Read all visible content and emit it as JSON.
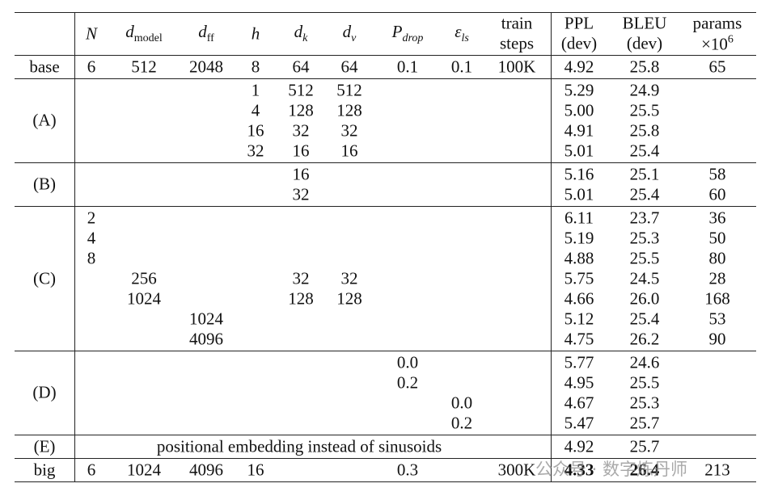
{
  "table": {
    "header": [
      {
        "lines": [
          [
            {
              "text": "N",
              "italic": true
            }
          ]
        ]
      },
      {
        "lines": [
          [
            {
              "text": "d",
              "italic": true
            },
            {
              "text": "model",
              "sub": true
            }
          ]
        ]
      },
      {
        "lines": [
          [
            {
              "text": "d",
              "italic": true
            },
            {
              "text": "ff",
              "sub": true
            }
          ]
        ]
      },
      {
        "lines": [
          [
            {
              "text": "h",
              "italic": true
            }
          ]
        ]
      },
      {
        "lines": [
          [
            {
              "text": "d",
              "italic": true
            },
            {
              "text": "k",
              "sub": true,
              "italic": true
            }
          ]
        ]
      },
      {
        "lines": [
          [
            {
              "text": "d",
              "italic": true
            },
            {
              "text": "v",
              "sub": true,
              "italic": true
            }
          ]
        ]
      },
      {
        "lines": [
          [
            {
              "text": "P",
              "italic": true
            },
            {
              "text": "drop",
              "sub": true,
              "italic": true
            }
          ]
        ]
      },
      {
        "lines": [
          [
            {
              "text": "ε",
              "italic": true
            },
            {
              "text": "ls",
              "sub": true,
              "italic": true
            }
          ]
        ]
      },
      {
        "lines": [
          [
            {
              "text": "train"
            }
          ],
          [
            {
              "text": "steps"
            }
          ]
        ]
      },
      {
        "lines": [
          [
            {
              "text": "PPL"
            }
          ],
          [
            {
              "text": "(dev)"
            }
          ]
        ]
      },
      {
        "lines": [
          [
            {
              "text": "BLEU"
            }
          ],
          [
            {
              "text": "(dev)"
            }
          ]
        ]
      },
      {
        "lines": [
          [
            {
              "text": "params"
            }
          ],
          [
            {
              "text": "×10"
            },
            {
              "text": "6",
              "sup": true
            }
          ]
        ]
      }
    ],
    "rows": [
      {
        "label": "base",
        "lines": [
          [
            "6",
            "512",
            "2048",
            "8",
            "64",
            "64",
            "0.1",
            "0.1",
            "100K",
            "4.92",
            "25.8",
            "65"
          ]
        ]
      },
      {
        "label": "(A)",
        "lines": [
          [
            null,
            null,
            null,
            "1",
            "512",
            "512",
            null,
            null,
            null,
            "5.29",
            "24.9",
            null
          ],
          [
            null,
            null,
            null,
            "4",
            "128",
            "128",
            null,
            null,
            null,
            "5.00",
            "25.5",
            null
          ],
          [
            null,
            null,
            null,
            "16",
            "32",
            "32",
            null,
            null,
            null,
            "4.91",
            "25.8",
            null
          ],
          [
            null,
            null,
            null,
            "32",
            "16",
            "16",
            null,
            null,
            null,
            "5.01",
            "25.4",
            null
          ]
        ]
      },
      {
        "label": "(B)",
        "lines": [
          [
            null,
            null,
            null,
            null,
            "16",
            null,
            null,
            null,
            null,
            "5.16",
            "25.1",
            "58"
          ],
          [
            null,
            null,
            null,
            null,
            "32",
            null,
            null,
            null,
            null,
            "5.01",
            "25.4",
            "60"
          ]
        ]
      },
      {
        "label": "(C)",
        "lines": [
          [
            "2",
            null,
            null,
            null,
            null,
            null,
            null,
            null,
            null,
            "6.11",
            "23.7",
            "36"
          ],
          [
            "4",
            null,
            null,
            null,
            null,
            null,
            null,
            null,
            null,
            "5.19",
            "25.3",
            "50"
          ],
          [
            "8",
            null,
            null,
            null,
            null,
            null,
            null,
            null,
            null,
            "4.88",
            "25.5",
            "80"
          ],
          [
            null,
            "256",
            null,
            null,
            "32",
            "32",
            null,
            null,
            null,
            "5.75",
            "24.5",
            "28"
          ],
          [
            null,
            "1024",
            null,
            null,
            "128",
            "128",
            null,
            null,
            null,
            "4.66",
            "26.0",
            "168"
          ],
          [
            null,
            null,
            "1024",
            null,
            null,
            null,
            null,
            null,
            null,
            "5.12",
            "25.4",
            "53"
          ],
          [
            null,
            null,
            "4096",
            null,
            null,
            null,
            null,
            null,
            null,
            "4.75",
            "26.2",
            "90"
          ]
        ]
      },
      {
        "label": "(D)",
        "lines": [
          [
            null,
            null,
            null,
            null,
            null,
            null,
            "0.0",
            null,
            null,
            "5.77",
            "24.6",
            null
          ],
          [
            null,
            null,
            null,
            null,
            null,
            null,
            "0.2",
            null,
            null,
            "4.95",
            "25.5",
            null
          ],
          [
            null,
            null,
            null,
            null,
            null,
            null,
            null,
            "0.0",
            null,
            "4.67",
            "25.3",
            null
          ],
          [
            null,
            null,
            null,
            null,
            null,
            null,
            null,
            "0.2",
            null,
            "5.47",
            "25.7",
            null
          ]
        ]
      },
      {
        "label": "(E)",
        "span": "positional embedding instead of sinusoids",
        "lines": [
          [
            null,
            null,
            null,
            null,
            null,
            null,
            null,
            null,
            null,
            "4.92",
            "25.7",
            null
          ]
        ]
      },
      {
        "label": "big",
        "bold": [
          9,
          10
        ],
        "lines": [
          [
            "6",
            "1024",
            "4096",
            "16",
            null,
            null,
            "0.3",
            null,
            "300K",
            "4.33",
            "26.4",
            "213"
          ]
        ]
      }
    ]
  },
  "watermark": "公众号 · 数字炼丹师"
}
